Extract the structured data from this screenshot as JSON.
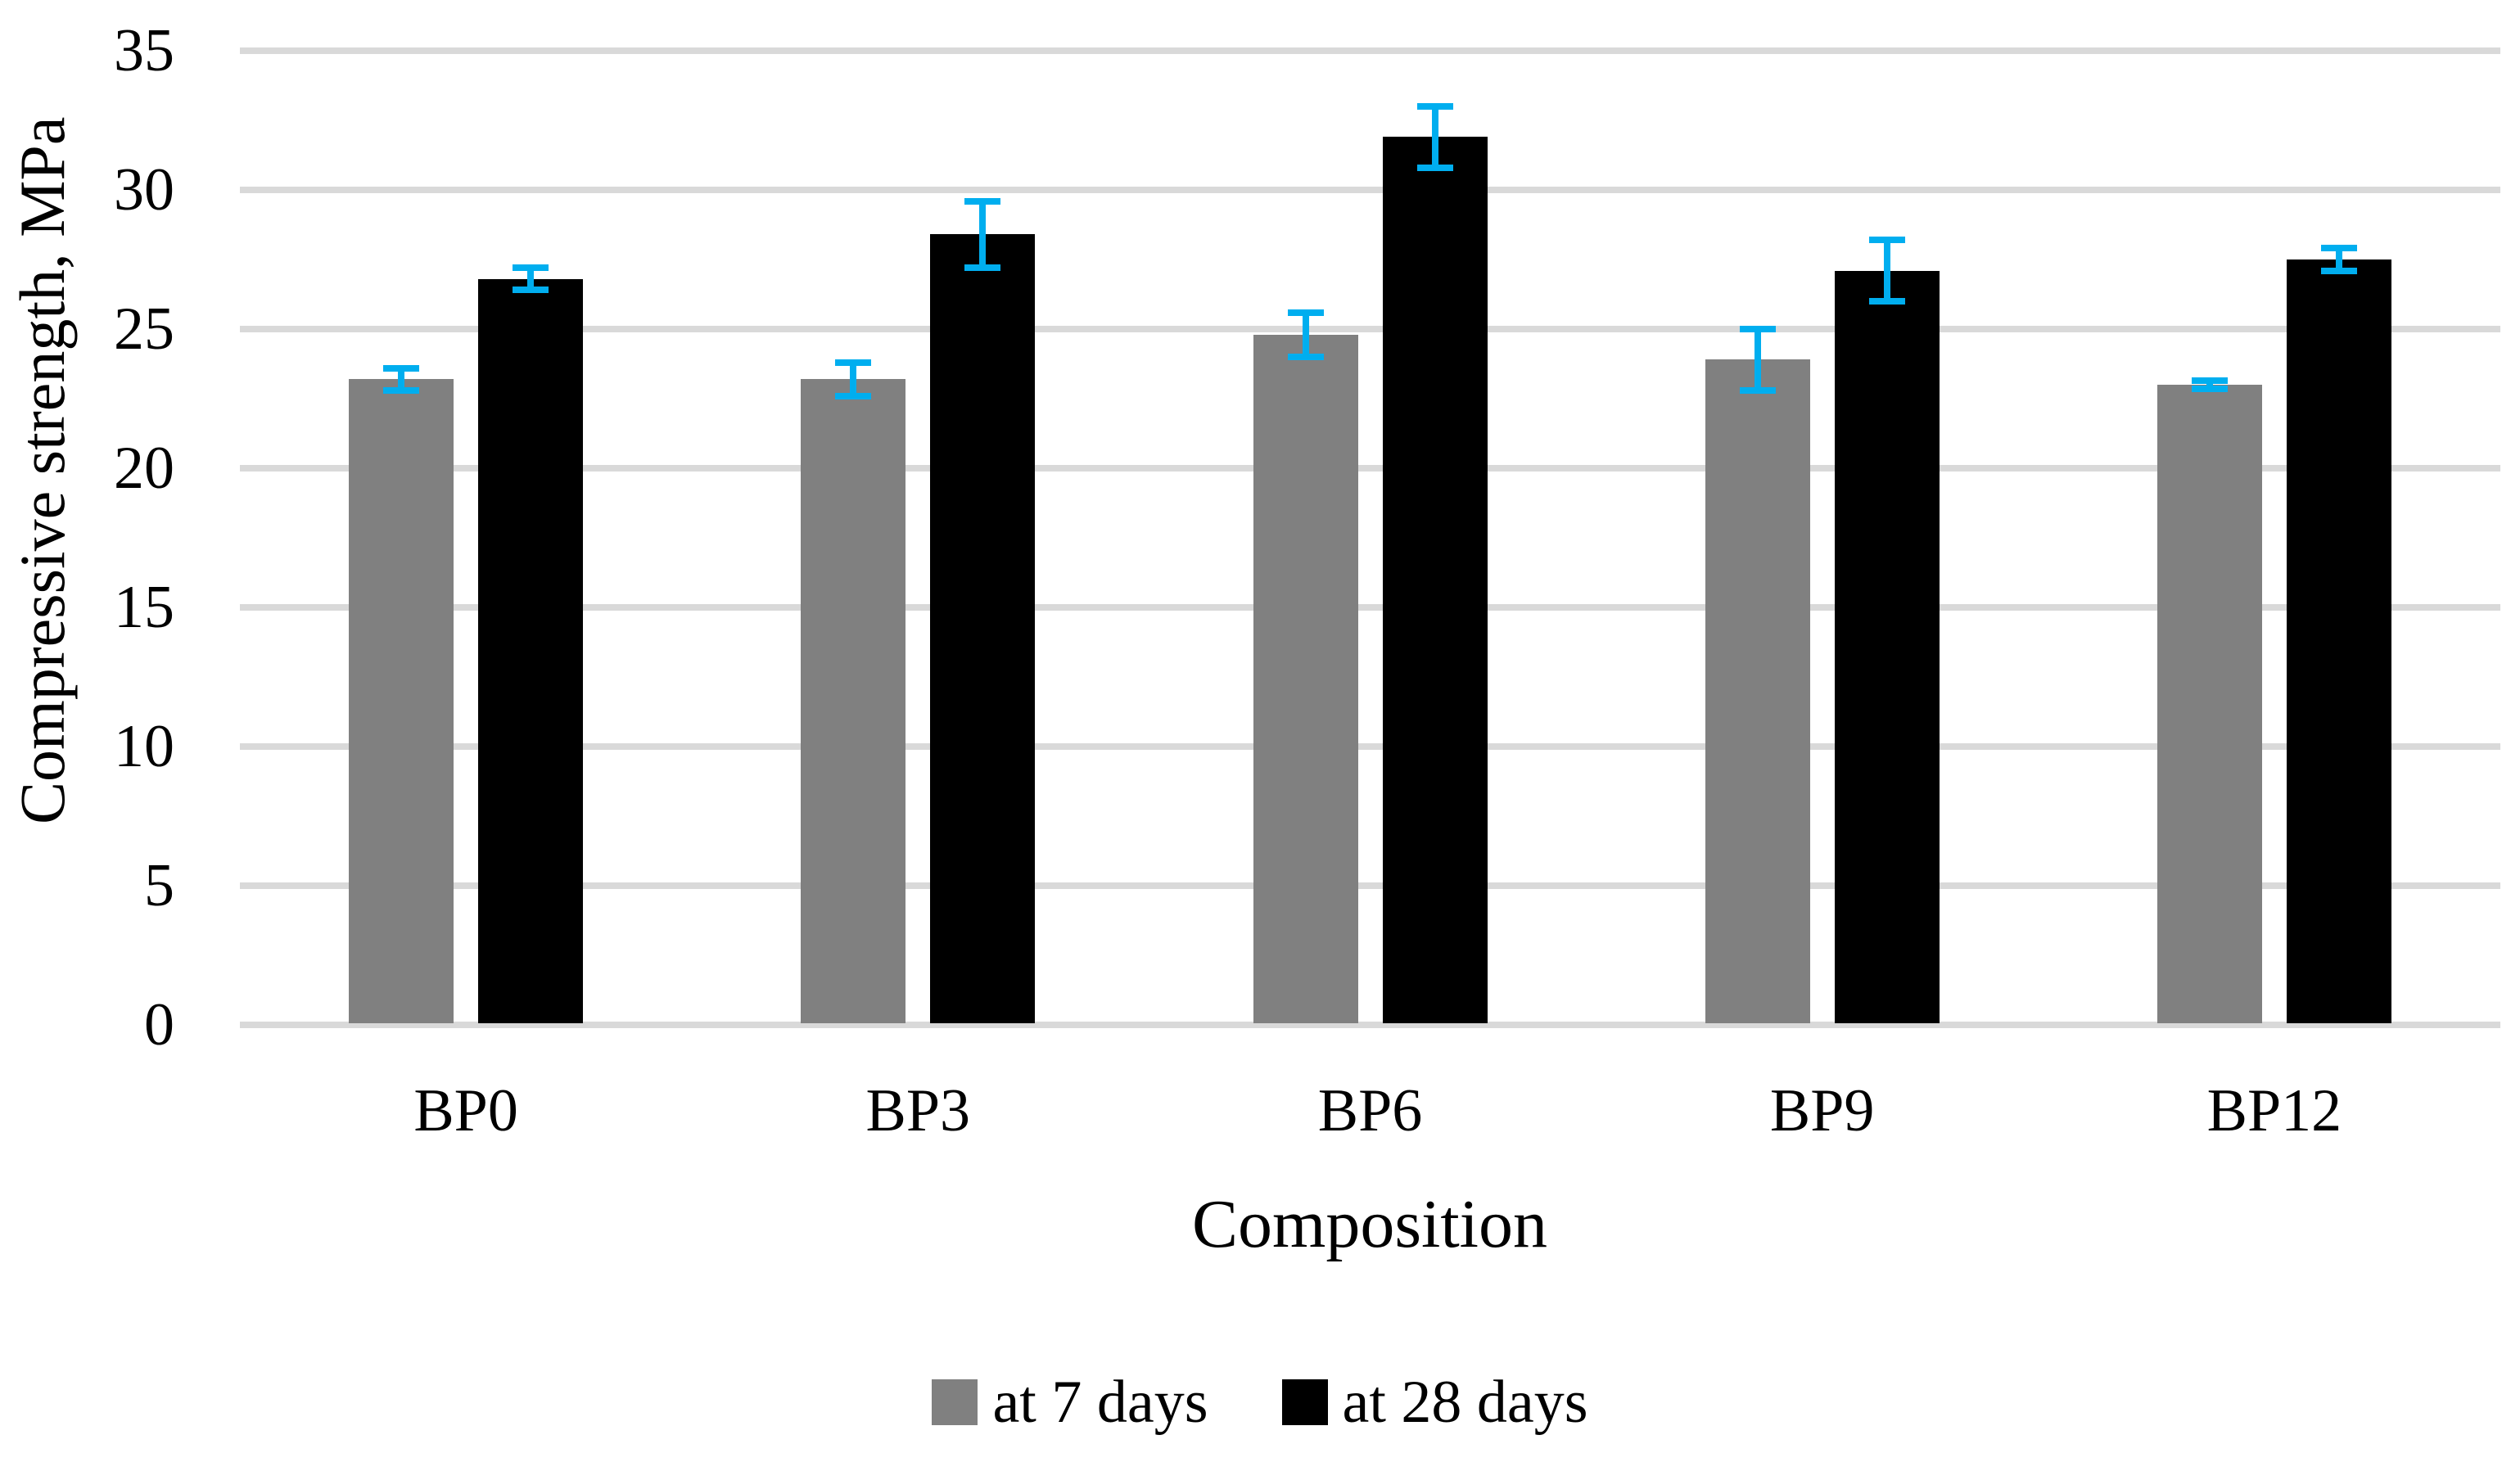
{
  "chart_data": {
    "type": "bar",
    "title": "",
    "xlabel": "Composition",
    "ylabel": "Compressive strength, MPa",
    "categories": [
      "BP0",
      "BP3",
      "BP6",
      "BP9",
      "BP12"
    ],
    "series": [
      {
        "name": "at 7 days",
        "color": "#808080",
        "values": [
          23.2,
          23.2,
          24.8,
          23.9,
          23.0
        ],
        "errors": [
          0.4,
          0.6,
          0.8,
          1.1,
          0.15
        ]
      },
      {
        "name": "at 28 days",
        "color": "#000000",
        "values": [
          26.8,
          28.4,
          31.9,
          27.1,
          27.5
        ],
        "errors": [
          0.4,
          1.2,
          1.1,
          1.1,
          0.4
        ]
      }
    ],
    "error_bar_color": "#00AEEF",
    "gridline_color": "#D9D9D9",
    "yticks": [
      0,
      5,
      10,
      15,
      20,
      25,
      30,
      35
    ],
    "ylim": [
      0,
      35
    ],
    "grid": true,
    "legend_position": "bottom"
  }
}
